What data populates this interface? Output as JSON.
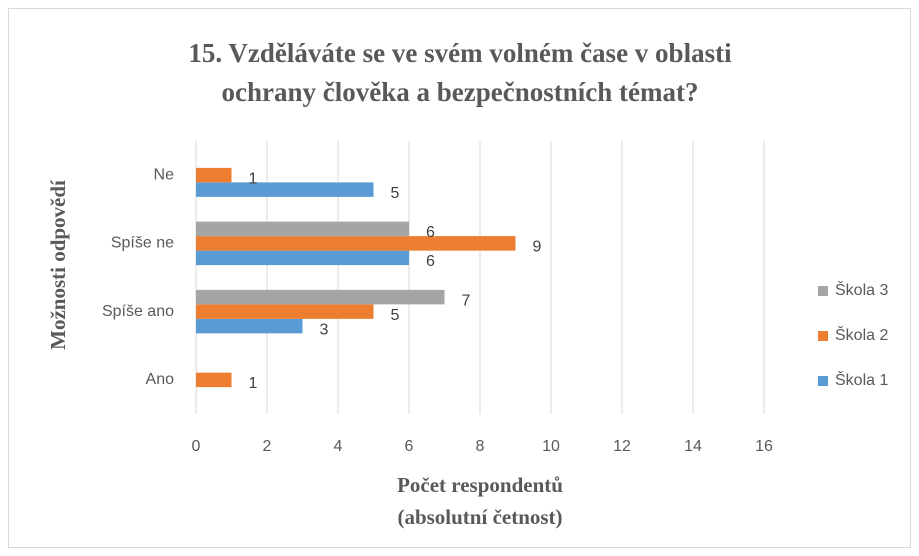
{
  "chart_data": {
    "type": "bar",
    "orientation": "horizontal",
    "title": [
      "15. Vzděláváte se ve svém volném čase v oblasti",
      "ochrany člověka a bezpečnostních témat?"
    ],
    "x_label": [
      "Počet respondentů",
      "(absolutní četnost)"
    ],
    "y_label": "Možnosti odpovědí",
    "categories": [
      "Ano",
      "Spíše ano",
      "Spíše ne",
      "Ne"
    ],
    "series": [
      {
        "name": "Škola 1",
        "color": "#5b9bd5",
        "values": [
          null,
          3,
          6,
          5
        ]
      },
      {
        "name": "Škola 2",
        "color": "#ed7d31",
        "values": [
          1,
          5,
          9,
          1
        ]
      },
      {
        "name": "Škola 3",
        "color": "#a5a5a5",
        "values": [
          null,
          7,
          6,
          null
        ]
      }
    ],
    "xlim": [
      0,
      16
    ],
    "xticks": [
      0,
      2,
      4,
      6,
      8,
      10,
      12,
      14,
      16
    ],
    "grid": true,
    "legend": "right"
  }
}
